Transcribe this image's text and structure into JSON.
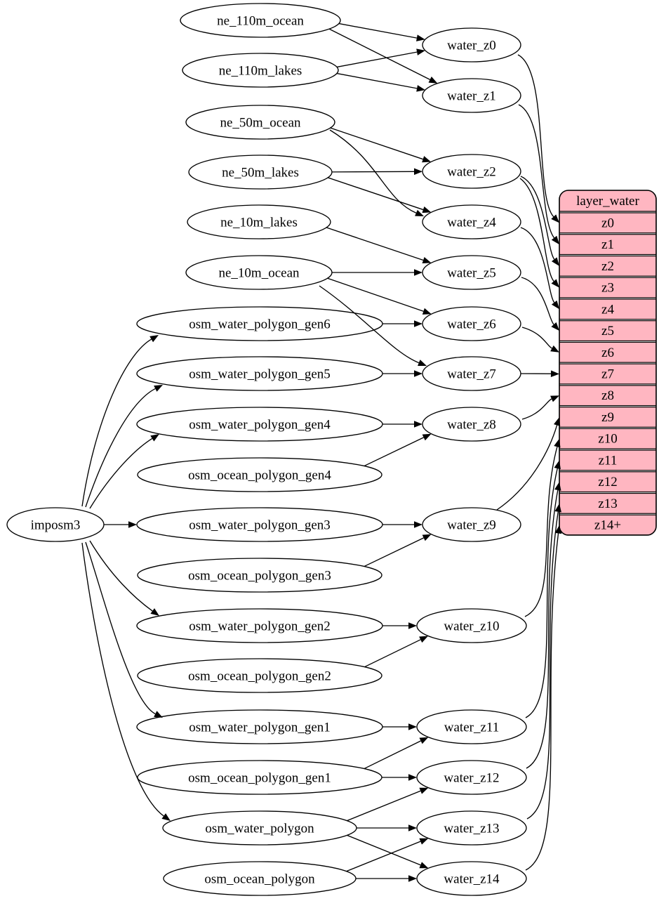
{
  "diagram": {
    "colors": {
      "background": "#ffffff",
      "node_fill": "#ffffff",
      "node_stroke": "#000000",
      "edge": "#000000",
      "table_fill": "#ffb6c1",
      "table_stroke": "#000000",
      "text": "#000000"
    },
    "nodes": [
      {
        "id": "imposm3",
        "label": "imposm3"
      },
      {
        "id": "ne_110m_ocean",
        "label": "ne_110m_ocean"
      },
      {
        "id": "ne_110m_lakes",
        "label": "ne_110m_lakes"
      },
      {
        "id": "ne_50m_ocean",
        "label": "ne_50m_ocean"
      },
      {
        "id": "ne_50m_lakes",
        "label": "ne_50m_lakes"
      },
      {
        "id": "ne_10m_lakes",
        "label": "ne_10m_lakes"
      },
      {
        "id": "ne_10m_ocean",
        "label": "ne_10m_ocean"
      },
      {
        "id": "osm_water_polygon_gen6",
        "label": "osm_water_polygon_gen6"
      },
      {
        "id": "osm_water_polygon_gen5",
        "label": "osm_water_polygon_gen5"
      },
      {
        "id": "osm_water_polygon_gen4",
        "label": "osm_water_polygon_gen4"
      },
      {
        "id": "osm_ocean_polygon_gen4",
        "label": "osm_ocean_polygon_gen4"
      },
      {
        "id": "osm_water_polygon_gen3",
        "label": "osm_water_polygon_gen3"
      },
      {
        "id": "osm_ocean_polygon_gen3",
        "label": "osm_ocean_polygon_gen3"
      },
      {
        "id": "osm_water_polygon_gen2",
        "label": "osm_water_polygon_gen2"
      },
      {
        "id": "osm_ocean_polygon_gen2",
        "label": "osm_ocean_polygon_gen2"
      },
      {
        "id": "osm_water_polygon_gen1",
        "label": "osm_water_polygon_gen1"
      },
      {
        "id": "osm_ocean_polygon_gen1",
        "label": "osm_ocean_polygon_gen1"
      },
      {
        "id": "osm_water_polygon",
        "label": "osm_water_polygon"
      },
      {
        "id": "osm_ocean_polygon",
        "label": "osm_ocean_polygon"
      },
      {
        "id": "water_z0",
        "label": "water_z0"
      },
      {
        "id": "water_z1",
        "label": "water_z1"
      },
      {
        "id": "water_z2",
        "label": "water_z2"
      },
      {
        "id": "water_z4",
        "label": "water_z4"
      },
      {
        "id": "water_z5",
        "label": "water_z5"
      },
      {
        "id": "water_z6",
        "label": "water_z6"
      },
      {
        "id": "water_z7",
        "label": "water_z7"
      },
      {
        "id": "water_z8",
        "label": "water_z8"
      },
      {
        "id": "water_z9",
        "label": "water_z9"
      },
      {
        "id": "water_z10",
        "label": "water_z10"
      },
      {
        "id": "water_z11",
        "label": "water_z11"
      },
      {
        "id": "water_z12",
        "label": "water_z12"
      },
      {
        "id": "water_z13",
        "label": "water_z13"
      },
      {
        "id": "water_z14",
        "label": "water_z14"
      }
    ],
    "table": {
      "title": "layer_water",
      "rows": [
        "z0",
        "z1",
        "z2",
        "z3",
        "z4",
        "z5",
        "z6",
        "z7",
        "z8",
        "z9",
        "z10",
        "z11",
        "z12",
        "z13",
        "z14+"
      ]
    },
    "edges": [
      [
        "ne_110m_ocean",
        "water_z0"
      ],
      [
        "ne_110m_ocean",
        "water_z1"
      ],
      [
        "ne_110m_lakes",
        "water_z0"
      ],
      [
        "ne_110m_lakes",
        "water_z1"
      ],
      [
        "ne_50m_ocean",
        "water_z2"
      ],
      [
        "ne_50m_ocean",
        "water_z4"
      ],
      [
        "ne_50m_lakes",
        "water_z2"
      ],
      [
        "ne_50m_lakes",
        "water_z4"
      ],
      [
        "ne_10m_lakes",
        "water_z5"
      ],
      [
        "ne_10m_ocean",
        "water_z5"
      ],
      [
        "ne_10m_ocean",
        "water_z6"
      ],
      [
        "ne_10m_ocean",
        "water_z7"
      ],
      [
        "osm_water_polygon_gen6",
        "water_z6"
      ],
      [
        "osm_water_polygon_gen5",
        "water_z7"
      ],
      [
        "osm_water_polygon_gen4",
        "water_z8"
      ],
      [
        "osm_ocean_polygon_gen4",
        "water_z8"
      ],
      [
        "osm_water_polygon_gen3",
        "water_z9"
      ],
      [
        "osm_ocean_polygon_gen3",
        "water_z9"
      ],
      [
        "osm_water_polygon_gen2",
        "water_z10"
      ],
      [
        "osm_ocean_polygon_gen2",
        "water_z10"
      ],
      [
        "osm_water_polygon_gen1",
        "water_z11"
      ],
      [
        "osm_ocean_polygon_gen1",
        "water_z11"
      ],
      [
        "osm_ocean_polygon_gen1",
        "water_z12"
      ],
      [
        "osm_water_polygon",
        "water_z12"
      ],
      [
        "osm_water_polygon",
        "water_z13"
      ],
      [
        "osm_water_polygon",
        "water_z14"
      ],
      [
        "osm_ocean_polygon",
        "water_z13"
      ],
      [
        "osm_ocean_polygon",
        "water_z14"
      ],
      [
        "imposm3",
        "osm_water_polygon_gen6"
      ],
      [
        "imposm3",
        "osm_water_polygon_gen5"
      ],
      [
        "imposm3",
        "osm_water_polygon_gen4"
      ],
      [
        "imposm3",
        "osm_water_polygon_gen3"
      ],
      [
        "imposm3",
        "osm_water_polygon_gen2"
      ],
      [
        "imposm3",
        "osm_water_polygon_gen1"
      ],
      [
        "imposm3",
        "osm_water_polygon"
      ],
      [
        "water_z0",
        "layer_water.z0"
      ],
      [
        "water_z1",
        "layer_water.z1"
      ],
      [
        "water_z2",
        "layer_water.z2"
      ],
      [
        "water_z2",
        "layer_water.z3"
      ],
      [
        "water_z4",
        "layer_water.z4"
      ],
      [
        "water_z5",
        "layer_water.z5"
      ],
      [
        "water_z6",
        "layer_water.z6"
      ],
      [
        "water_z7",
        "layer_water.z7"
      ],
      [
        "water_z8",
        "layer_water.z8"
      ],
      [
        "water_z9",
        "layer_water.z9"
      ],
      [
        "water_z10",
        "layer_water.z10"
      ],
      [
        "water_z11",
        "layer_water.z11"
      ],
      [
        "water_z12",
        "layer_water.z12"
      ],
      [
        "water_z13",
        "layer_water.z13"
      ],
      [
        "water_z14",
        "layer_water.z14+"
      ]
    ]
  }
}
